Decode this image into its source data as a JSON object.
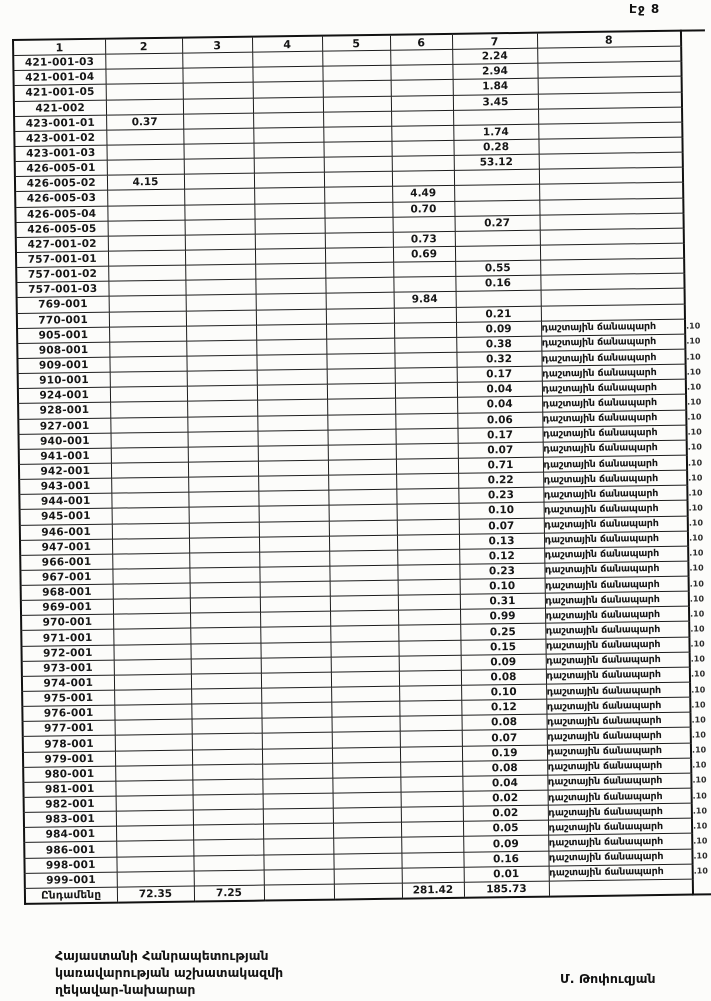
{
  "colors": {
    "ink": "#1a1a1a",
    "paper": "#fcfcfa"
  },
  "page": {
    "page_label": "Էջ 8"
  },
  "table": {
    "headers": [
      "1",
      "2",
      "3",
      "4",
      "5",
      "6",
      "7",
      "8"
    ],
    "field_road_label": "դաշտային ճանապարհ",
    "margin_mark": ".10",
    "rows": [
      {
        "code": "421-001-03",
        "col": 7,
        "val": "2.24",
        "road": false
      },
      {
        "code": "421-001-04",
        "col": 7,
        "val": "2.94",
        "road": false
      },
      {
        "code": "421-001-05",
        "col": 7,
        "val": "1.84",
        "road": false
      },
      {
        "code": "421-002",
        "col": 7,
        "val": "3.45",
        "road": false
      },
      {
        "code": "423-001-01",
        "col": 2,
        "val": "0.37",
        "road": false
      },
      {
        "code": "423-001-02",
        "col": 7,
        "val": "1.74",
        "road": false
      },
      {
        "code": "423-001-03",
        "col": 7,
        "val": "0.28",
        "road": false
      },
      {
        "code": "426-005-01",
        "col": 7,
        "val": "53.12",
        "road": false
      },
      {
        "code": "426-005-02",
        "col": 2,
        "val": "4.15",
        "road": false
      },
      {
        "code": "426-005-03",
        "col": 6,
        "val": "4.49",
        "road": false
      },
      {
        "code": "426-005-04",
        "col": 6,
        "val": "0.70",
        "road": false
      },
      {
        "code": "426-005-05",
        "col": 7,
        "val": "0.27",
        "road": false
      },
      {
        "code": "427-001-02",
        "col": 6,
        "val": "0.73",
        "road": false
      },
      {
        "code": "757-001-01",
        "col": 6,
        "val": "0.69",
        "road": false
      },
      {
        "code": "757-001-02",
        "col": 7,
        "val": "0.55",
        "road": false
      },
      {
        "code": "757-001-03",
        "col": 7,
        "val": "0.16",
        "road": false
      },
      {
        "code": "769-001",
        "col": 6,
        "val": "9.84",
        "road": false
      },
      {
        "code": "770-001",
        "col": 7,
        "val": "0.21",
        "road": false
      },
      {
        "code": "905-001",
        "col": 7,
        "val": "0.09",
        "road": true
      },
      {
        "code": "908-001",
        "col": 7,
        "val": "0.38",
        "road": true
      },
      {
        "code": "909-001",
        "col": 7,
        "val": "0.32",
        "road": true
      },
      {
        "code": "910-001",
        "col": 7,
        "val": "0.17",
        "road": true
      },
      {
        "code": "924-001",
        "col": 7,
        "val": "0.04",
        "road": true
      },
      {
        "code": "928-001",
        "col": 7,
        "val": "0.04",
        "road": true
      },
      {
        "code": "927-001",
        "col": 7,
        "val": "0.06",
        "road": true
      },
      {
        "code": "940-001",
        "col": 7,
        "val": "0.17",
        "road": true
      },
      {
        "code": "941-001",
        "col": 7,
        "val": "0.07",
        "road": true
      },
      {
        "code": "942-001",
        "col": 7,
        "val": "0.71",
        "road": true
      },
      {
        "code": "943-001",
        "col": 7,
        "val": "0.22",
        "road": true
      },
      {
        "code": "944-001",
        "col": 7,
        "val": "0.23",
        "road": true
      },
      {
        "code": "945-001",
        "col": 7,
        "val": "0.10",
        "road": true
      },
      {
        "code": "946-001",
        "col": 7,
        "val": "0.07",
        "road": true
      },
      {
        "code": "947-001",
        "col": 7,
        "val": "0.13",
        "road": true
      },
      {
        "code": "966-001",
        "col": 7,
        "val": "0.12",
        "road": true
      },
      {
        "code": "967-001",
        "col": 7,
        "val": "0.23",
        "road": true
      },
      {
        "code": "968-001",
        "col": 7,
        "val": "0.10",
        "road": true
      },
      {
        "code": "969-001",
        "col": 7,
        "val": "0.31",
        "road": true
      },
      {
        "code": "970-001",
        "col": 7,
        "val": "0.99",
        "road": true
      },
      {
        "code": "971-001",
        "col": 7,
        "val": "0.25",
        "road": true
      },
      {
        "code": "972-001",
        "col": 7,
        "val": "0.15",
        "road": true
      },
      {
        "code": "973-001",
        "col": 7,
        "val": "0.09",
        "road": true
      },
      {
        "code": "974-001",
        "col": 7,
        "val": "0.08",
        "road": true
      },
      {
        "code": "975-001",
        "col": 7,
        "val": "0.10",
        "road": true
      },
      {
        "code": "976-001",
        "col": 7,
        "val": "0.12",
        "road": true
      },
      {
        "code": "977-001",
        "col": 7,
        "val": "0.08",
        "road": true
      },
      {
        "code": "978-001",
        "col": 7,
        "val": "0.07",
        "road": true
      },
      {
        "code": "979-001",
        "col": 7,
        "val": "0.19",
        "road": true
      },
      {
        "code": "980-001",
        "col": 7,
        "val": "0.08",
        "road": true
      },
      {
        "code": "981-001",
        "col": 7,
        "val": "0.04",
        "road": true
      },
      {
        "code": "982-001",
        "col": 7,
        "val": "0.02",
        "road": true
      },
      {
        "code": "983-001",
        "col": 7,
        "val": "0.02",
        "road": true
      },
      {
        "code": "984-001",
        "col": 7,
        "val": "0.05",
        "road": true
      },
      {
        "code": "986-001",
        "col": 7,
        "val": "0.09",
        "road": true
      },
      {
        "code": "998-001",
        "col": 7,
        "val": "0.16",
        "road": true
      },
      {
        "code": "999-001",
        "col": 7,
        "val": "0.01",
        "road": true
      }
    ],
    "total": {
      "label": "Ընդամենը",
      "c2": "72.35",
      "c3": "7.25",
      "c6": "281.42",
      "c7": "185.73"
    }
  },
  "footer": {
    "org_lines": [
      "Հայաստանի Հանրապետության",
      "կառավարության աշխատակազմի",
      "ղեկավար-նախարար"
    ],
    "signature": "Մ. Թոփուզյան"
  }
}
